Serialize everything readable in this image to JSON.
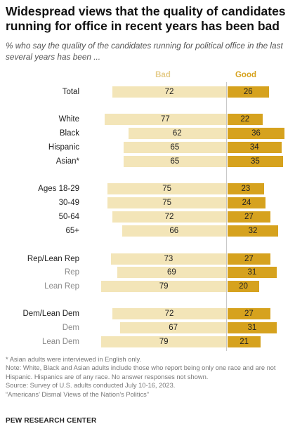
{
  "chart_data": {
    "type": "bar",
    "title": "Widespread views that the quality of candidates running for office in recent years has been bad",
    "subtitle": "% who say the quality of the candidates running for political office in the last several years has been ...",
    "series": [
      {
        "name": "Bad",
        "color": "#f3e5b8"
      },
      {
        "name": "Good",
        "color": "#d6a21e"
      }
    ],
    "rows": [
      {
        "label": "Total",
        "style": "main",
        "bad": 72,
        "good": 26
      },
      {
        "label": "White",
        "style": "main",
        "bad": 77,
        "good": 22
      },
      {
        "label": "Black",
        "style": "main",
        "bad": 62,
        "good": 36
      },
      {
        "label": "Hispanic",
        "style": "main",
        "bad": 65,
        "good": 34
      },
      {
        "label": "Asian*",
        "style": "main",
        "bad": 65,
        "good": 35
      },
      {
        "label": "Ages 18-29",
        "style": "main",
        "bad": 75,
        "good": 23
      },
      {
        "label": "30-49",
        "style": "main",
        "bad": 75,
        "good": 24
      },
      {
        "label": "50-64",
        "style": "main",
        "bad": 72,
        "good": 27
      },
      {
        "label": "65+",
        "style": "main",
        "bad": 66,
        "good": 32
      },
      {
        "label": "Rep/Lean Rep",
        "style": "main",
        "bad": 73,
        "good": 27
      },
      {
        "label": "Rep",
        "style": "sub",
        "bad": 69,
        "good": 31
      },
      {
        "label": "Lean Rep",
        "style": "sub",
        "bad": 79,
        "good": 20
      },
      {
        "label": "Dem/Lean Dem",
        "style": "main",
        "bad": 72,
        "good": 27
      },
      {
        "label": "Dem",
        "style": "sub",
        "bad": 67,
        "good": 31
      },
      {
        "label": "Lean Dem",
        "style": "sub",
        "bad": 79,
        "good": 21
      }
    ]
  },
  "notes": [
    "* Asian adults were interviewed in English only.",
    "Note: White, Black and Asian adults include those who report being only one race and are not Hispanic. Hispanics are of any race. No answer responses not shown.",
    "Source: Survey of U.S. adults conducted July 10-16, 2023.",
    "“Americans’ Dismal Views of the Nation’s Politics”"
  ],
  "source_org": "PEW RESEARCH CENTER"
}
